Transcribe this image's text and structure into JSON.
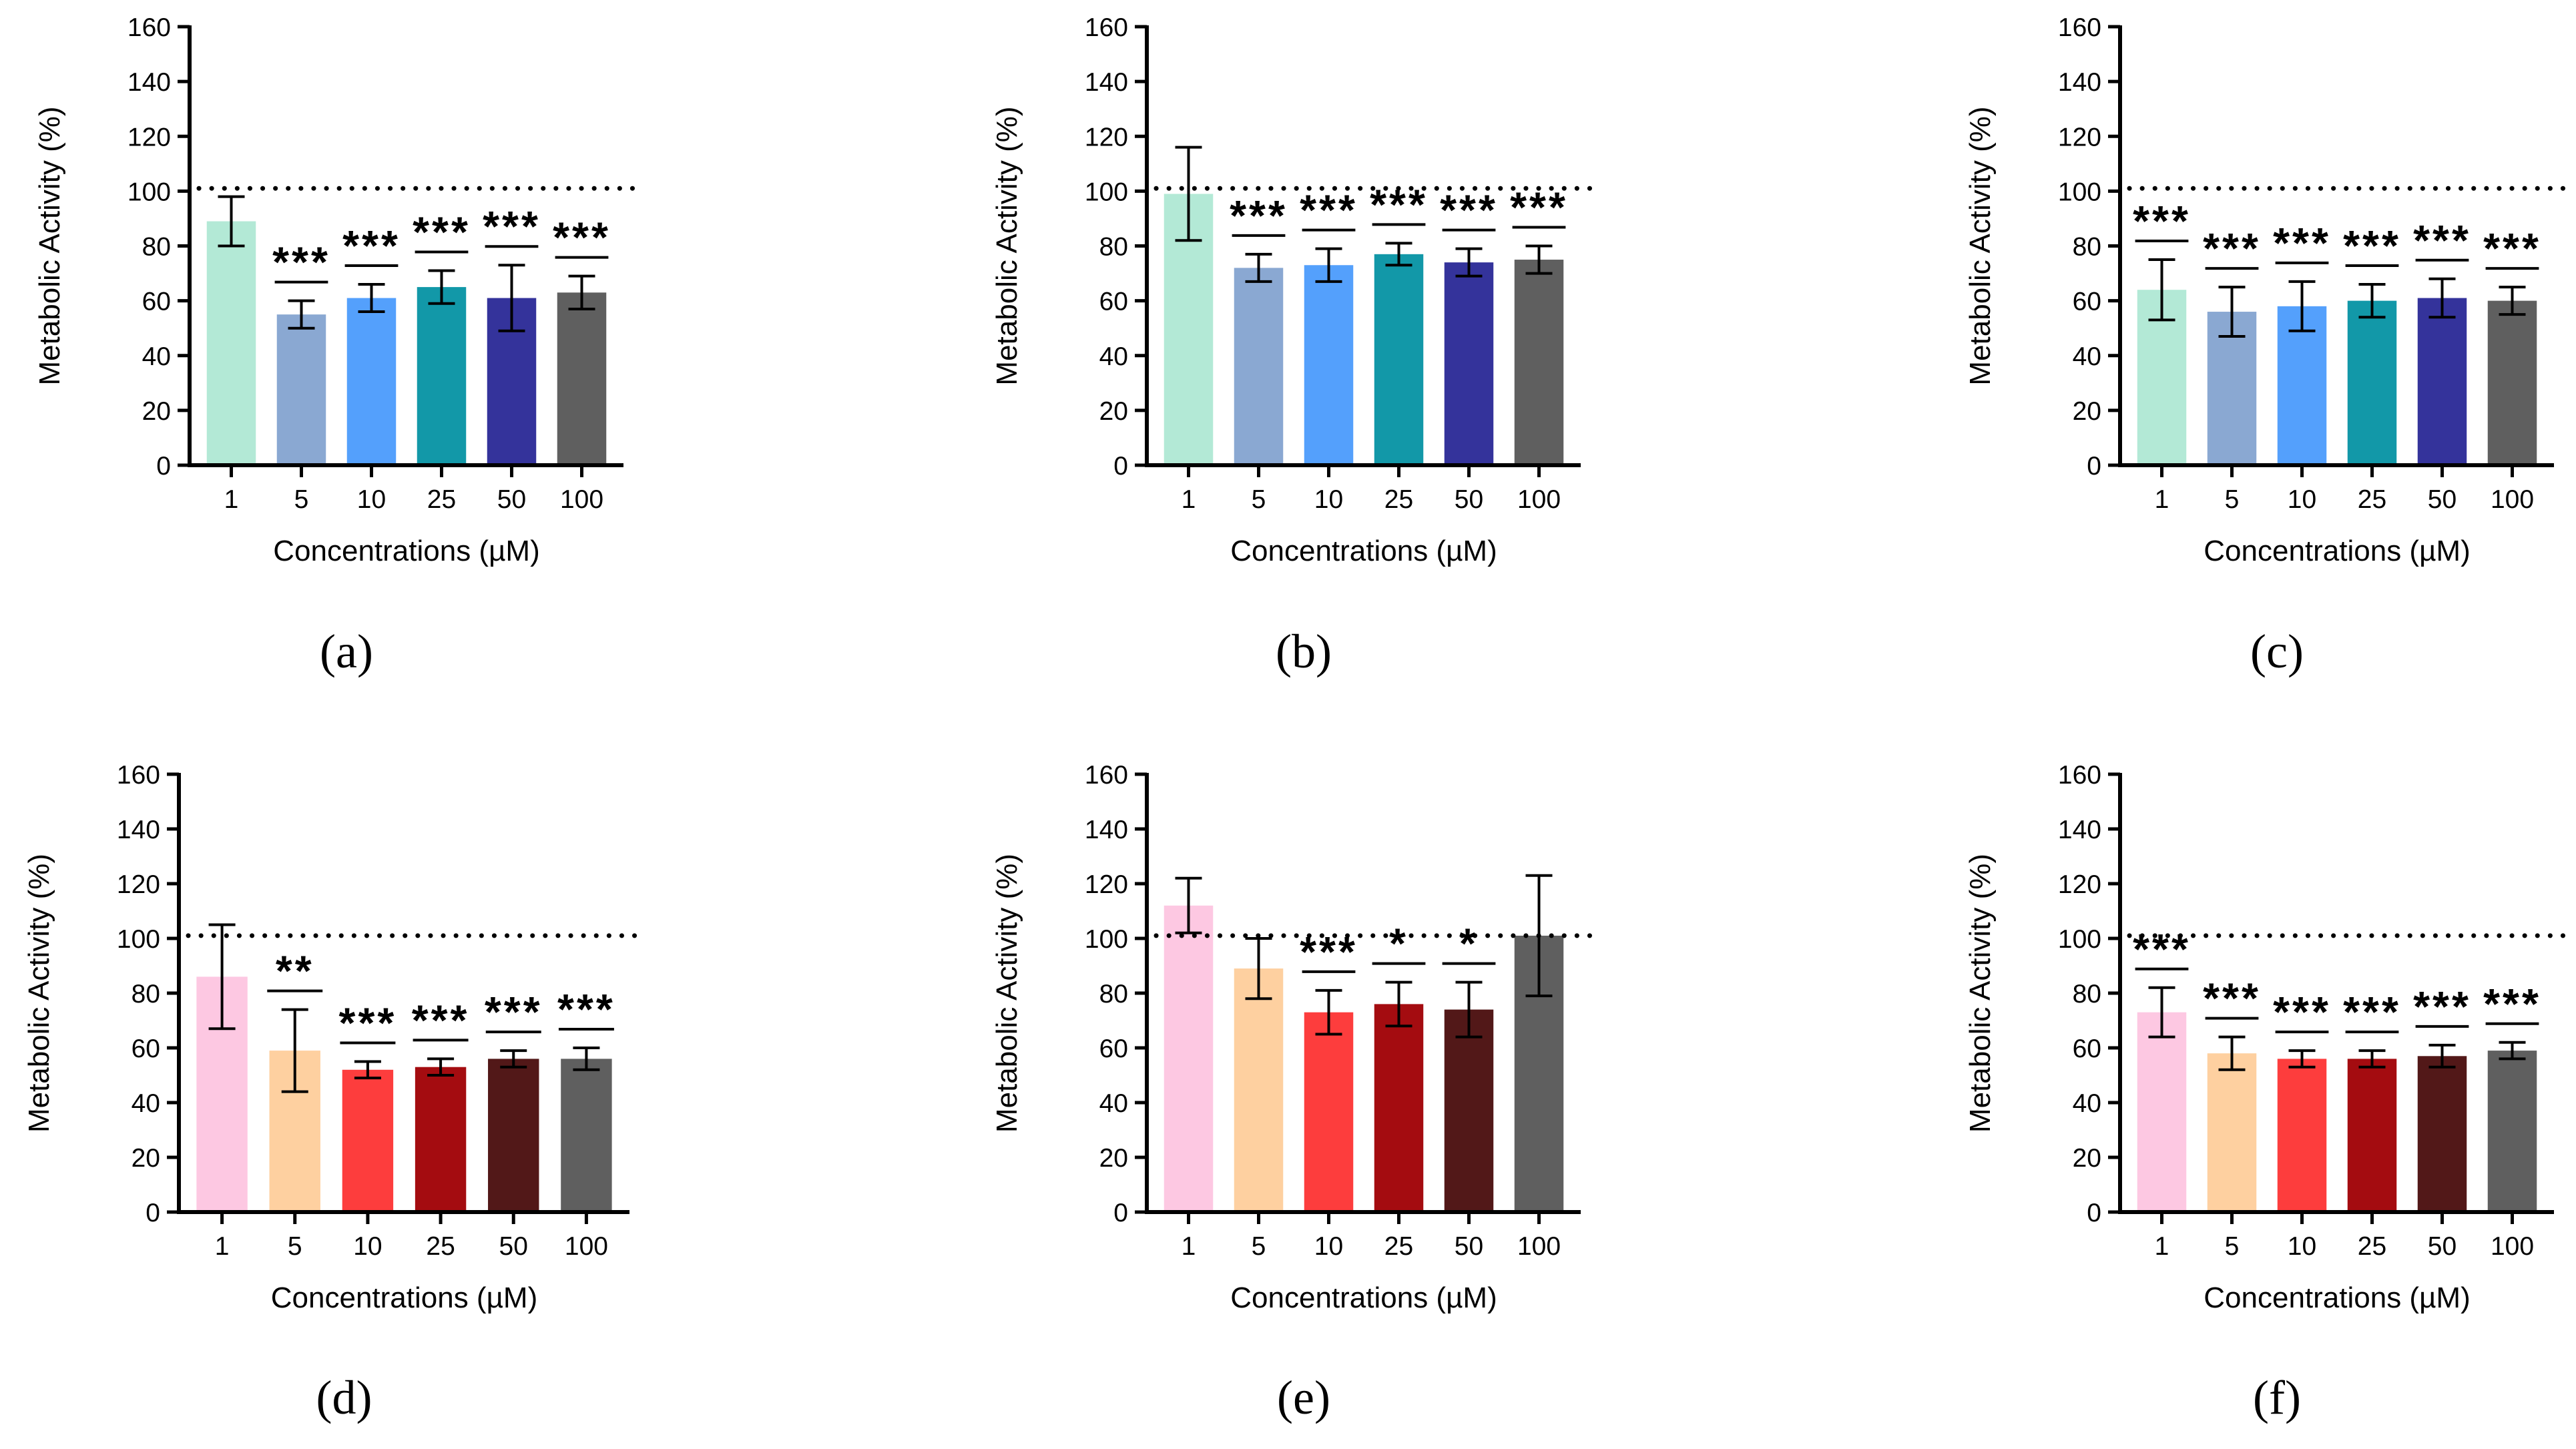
{
  "chart_data": [
    {
      "panel": "(a)",
      "type": "bar",
      "xlabel": "Concentrations (µM)",
      "ylabel": "Metabolic Activity (%)",
      "ylim": [
        0,
        160
      ],
      "yticks": [
        "0",
        "20",
        "40",
        "60",
        "80",
        "100",
        "120",
        "140",
        "160"
      ],
      "categories": [
        "1",
        "5",
        "10",
        "25",
        "50",
        "100"
      ],
      "values": [
        89,
        55,
        61,
        65,
        61,
        63
      ],
      "errors": [
        9,
        5,
        5,
        6,
        12,
        6
      ],
      "significance": [
        "",
        "***",
        "***",
        "***",
        "***",
        "***"
      ],
      "colors": [
        "#b3e9d6",
        "#8aa8d2",
        "#54a0fc",
        "#1298a8",
        "#34339b",
        "#5f5f5f"
      ],
      "reference_line": 101
    },
    {
      "panel": "(b)",
      "type": "bar",
      "xlabel": "Concentrations (µM)",
      "ylabel": "Metabolic Activity (%)",
      "ylim": [
        0,
        160
      ],
      "yticks": [
        "0",
        "20",
        "40",
        "60",
        "80",
        "100",
        "120",
        "140",
        "160"
      ],
      "categories": [
        "1",
        "5",
        "10",
        "25",
        "50",
        "100"
      ],
      "values": [
        99,
        72,
        73,
        77,
        74,
        75
      ],
      "errors": [
        17,
        5,
        6,
        4,
        5,
        5
      ],
      "significance": [
        "",
        "***",
        "***",
        "***",
        "***",
        "***"
      ],
      "colors": [
        "#b3e9d6",
        "#8aa8d2",
        "#54a0fc",
        "#1298a8",
        "#34339b",
        "#5f5f5f"
      ],
      "reference_line": 101
    },
    {
      "panel": "(c)",
      "type": "bar",
      "xlabel": "Concentrations (µM)",
      "ylabel": "Metabolic Activity (%)",
      "ylim": [
        0,
        160
      ],
      "yticks": [
        "0",
        "20",
        "40",
        "60",
        "80",
        "100",
        "120",
        "140",
        "160"
      ],
      "categories": [
        "1",
        "5",
        "10",
        "25",
        "50",
        "100"
      ],
      "values": [
        64,
        56,
        58,
        60,
        61,
        60
      ],
      "errors": [
        11,
        9,
        9,
        6,
        7,
        5
      ],
      "significance": [
        "***",
        "***",
        "***",
        "***",
        "***",
        "***"
      ],
      "colors": [
        "#b3e9d6",
        "#8aa8d2",
        "#54a0fc",
        "#1298a8",
        "#34339b",
        "#5f5f5f"
      ],
      "reference_line": 101
    },
    {
      "panel": "(d)",
      "type": "bar",
      "xlabel": "Concentrations (µM)",
      "ylabel": "Metabolic Activity (%)",
      "ylim": [
        0,
        160
      ],
      "yticks": [
        "0",
        "20",
        "40",
        "60",
        "80",
        "100",
        "120",
        "140",
        "160"
      ],
      "categories": [
        "1",
        "5",
        "10",
        "25",
        "50",
        "100"
      ],
      "values": [
        86,
        59,
        52,
        53,
        56,
        56
      ],
      "errors": [
        19,
        15,
        3,
        3,
        3,
        4
      ],
      "significance": [
        "",
        "**",
        "***",
        "***",
        "***",
        "***"
      ],
      "colors": [
        "#fdc8e2",
        "#fed0a0",
        "#fd3d3d",
        "#a40c10",
        "#521818",
        "#5f5f5f"
      ],
      "reference_line": 101
    },
    {
      "panel": "(e)",
      "type": "bar",
      "xlabel": "Concentrations (µM)",
      "ylabel": "Metabolic Activity (%)",
      "ylim": [
        0,
        160
      ],
      "yticks": [
        "0",
        "20",
        "40",
        "60",
        "80",
        "100",
        "120",
        "140",
        "160"
      ],
      "categories": [
        "1",
        "5",
        "10",
        "25",
        "50",
        "100"
      ],
      "values": [
        112,
        89,
        73,
        76,
        74,
        101
      ],
      "errors": [
        10,
        11,
        8,
        8,
        10,
        22
      ],
      "significance": [
        "",
        "",
        "***",
        "*",
        "*",
        ""
      ],
      "colors": [
        "#fdc8e2",
        "#fed0a0",
        "#fd3d3d",
        "#a40c10",
        "#521818",
        "#5f5f5f"
      ],
      "reference_line": 101
    },
    {
      "panel": "(f)",
      "type": "bar",
      "xlabel": "Concentrations (µM)",
      "ylabel": "Metabolic Activity (%)",
      "ylim": [
        0,
        160
      ],
      "yticks": [
        "0",
        "20",
        "40",
        "60",
        "80",
        "100",
        "120",
        "140",
        "160"
      ],
      "categories": [
        "1",
        "5",
        "10",
        "25",
        "50",
        "100"
      ],
      "values": [
        73,
        58,
        56,
        56,
        57,
        59
      ],
      "errors": [
        9,
        6,
        3,
        3,
        4,
        3
      ],
      "significance": [
        "***",
        "***",
        "***",
        "***",
        "***",
        "***"
      ],
      "colors": [
        "#fdc8e2",
        "#fed0a0",
        "#fd3d3d",
        "#a40c10",
        "#521818",
        "#5f5f5f"
      ],
      "reference_line": 101
    }
  ]
}
